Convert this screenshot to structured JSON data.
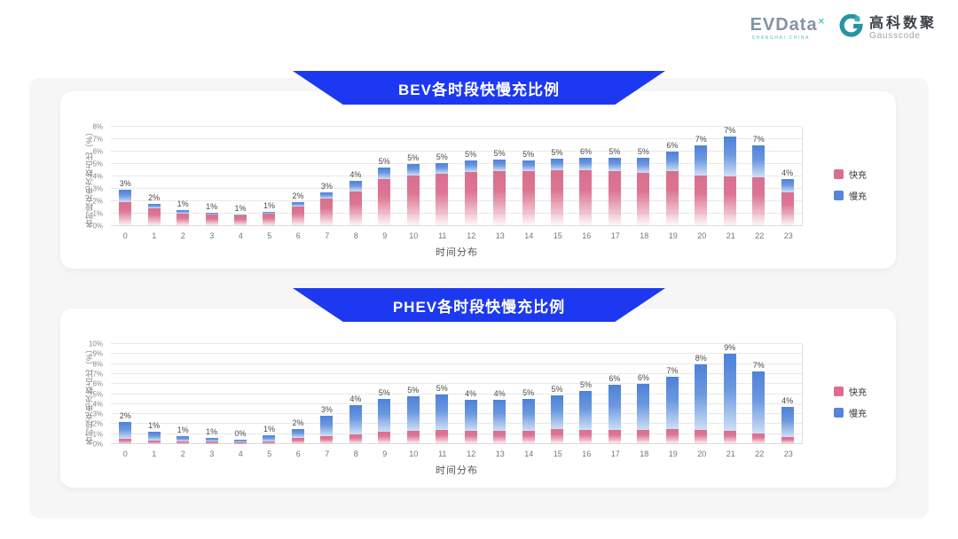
{
  "logo": {
    "evdata_text": "EVData",
    "evdata_sup": "✕",
    "evdata_sub": "SHANGHAI CHINA",
    "gausscode_cn": "高科数聚",
    "gausscode_en": "Gausscode"
  },
  "colors": {
    "fast": "#DC6E8D",
    "slow": "#5585DB",
    "banner": "#1C39F1",
    "teal": "#2E9FAD"
  },
  "chart_data": [
    {
      "type": "bar",
      "stacked": true,
      "title": "BEV各时段快慢充比例",
      "xlabel": "时间分布",
      "ylabel": "各时段充电次数占比（%）",
      "ylim": [
        0,
        8
      ],
      "ytick_suffix": "%",
      "grid": true,
      "legend_position": "right",
      "categories": [
        0,
        1,
        2,
        3,
        4,
        5,
        6,
        7,
        8,
        9,
        10,
        11,
        12,
        13,
        14,
        15,
        16,
        17,
        18,
        19,
        20,
        21,
        22,
        23
      ],
      "series": [
        {
          "name": "快充",
          "color": "#DC6E8D",
          "values": [
            1.95,
            1.4,
            1.0,
            0.9,
            0.85,
            1.0,
            1.6,
            2.2,
            2.8,
            3.8,
            4.1,
            4.2,
            4.35,
            4.45,
            4.45,
            4.5,
            4.5,
            4.4,
            4.3,
            4.4,
            4.1,
            4.0,
            3.9,
            2.7
          ]
        },
        {
          "name": "慢充",
          "color": "#5585DB",
          "values": [
            1.0,
            0.4,
            0.3,
            0.2,
            0.1,
            0.15,
            0.3,
            0.5,
            0.85,
            0.9,
            0.9,
            0.9,
            0.95,
            0.9,
            0.85,
            0.9,
            1.0,
            1.1,
            1.2,
            1.6,
            2.4,
            3.2,
            2.6,
            1.1
          ]
        }
      ],
      "total_labels": [
        "3%",
        "2%",
        "1%",
        "1%",
        "1%",
        "1%",
        "2%",
        "3%",
        "4%",
        "5%",
        "5%",
        "5%",
        "5%",
        "5%",
        "5%",
        "5%",
        "6%",
        "5%",
        "5%",
        "6%",
        "7%",
        "7%",
        "7%",
        "4%"
      ]
    },
    {
      "type": "bar",
      "stacked": true,
      "title": "PHEV各时段快慢充比例",
      "xlabel": "时间分布",
      "ylabel": "各时段充电次数占比（%）",
      "ylim": [
        0,
        10
      ],
      "ytick_suffix": "%",
      "grid": true,
      "legend_position": "right",
      "categories": [
        0,
        1,
        2,
        3,
        4,
        5,
        6,
        7,
        8,
        9,
        10,
        11,
        12,
        13,
        14,
        15,
        16,
        17,
        18,
        19,
        20,
        21,
        22,
        23
      ],
      "series": [
        {
          "name": "快充",
          "color": "#DC6E8D",
          "values": [
            0.5,
            0.35,
            0.3,
            0.25,
            0.2,
            0.3,
            0.6,
            0.8,
            1.0,
            1.2,
            1.3,
            1.4,
            1.3,
            1.3,
            1.3,
            1.5,
            1.4,
            1.4,
            1.4,
            1.5,
            1.4,
            1.3,
            1.1,
            0.7
          ]
        },
        {
          "name": "慢充",
          "color": "#5585DB",
          "values": [
            1.7,
            0.85,
            0.5,
            0.35,
            0.25,
            0.55,
            0.9,
            2.0,
            2.9,
            3.3,
            3.5,
            3.6,
            3.1,
            3.1,
            3.2,
            3.4,
            3.9,
            4.5,
            4.6,
            5.2,
            6.6,
            7.7,
            6.2,
            3.0
          ]
        }
      ],
      "total_labels": [
        "2%",
        "1%",
        "1%",
        "1%",
        "0%",
        "1%",
        "2%",
        "3%",
        "4%",
        "5%",
        "5%",
        "5%",
        "4%",
        "4%",
        "5%",
        "5%",
        "5%",
        "6%",
        "6%",
        "7%",
        "8%",
        "9%",
        "7%",
        "4%"
      ]
    }
  ]
}
